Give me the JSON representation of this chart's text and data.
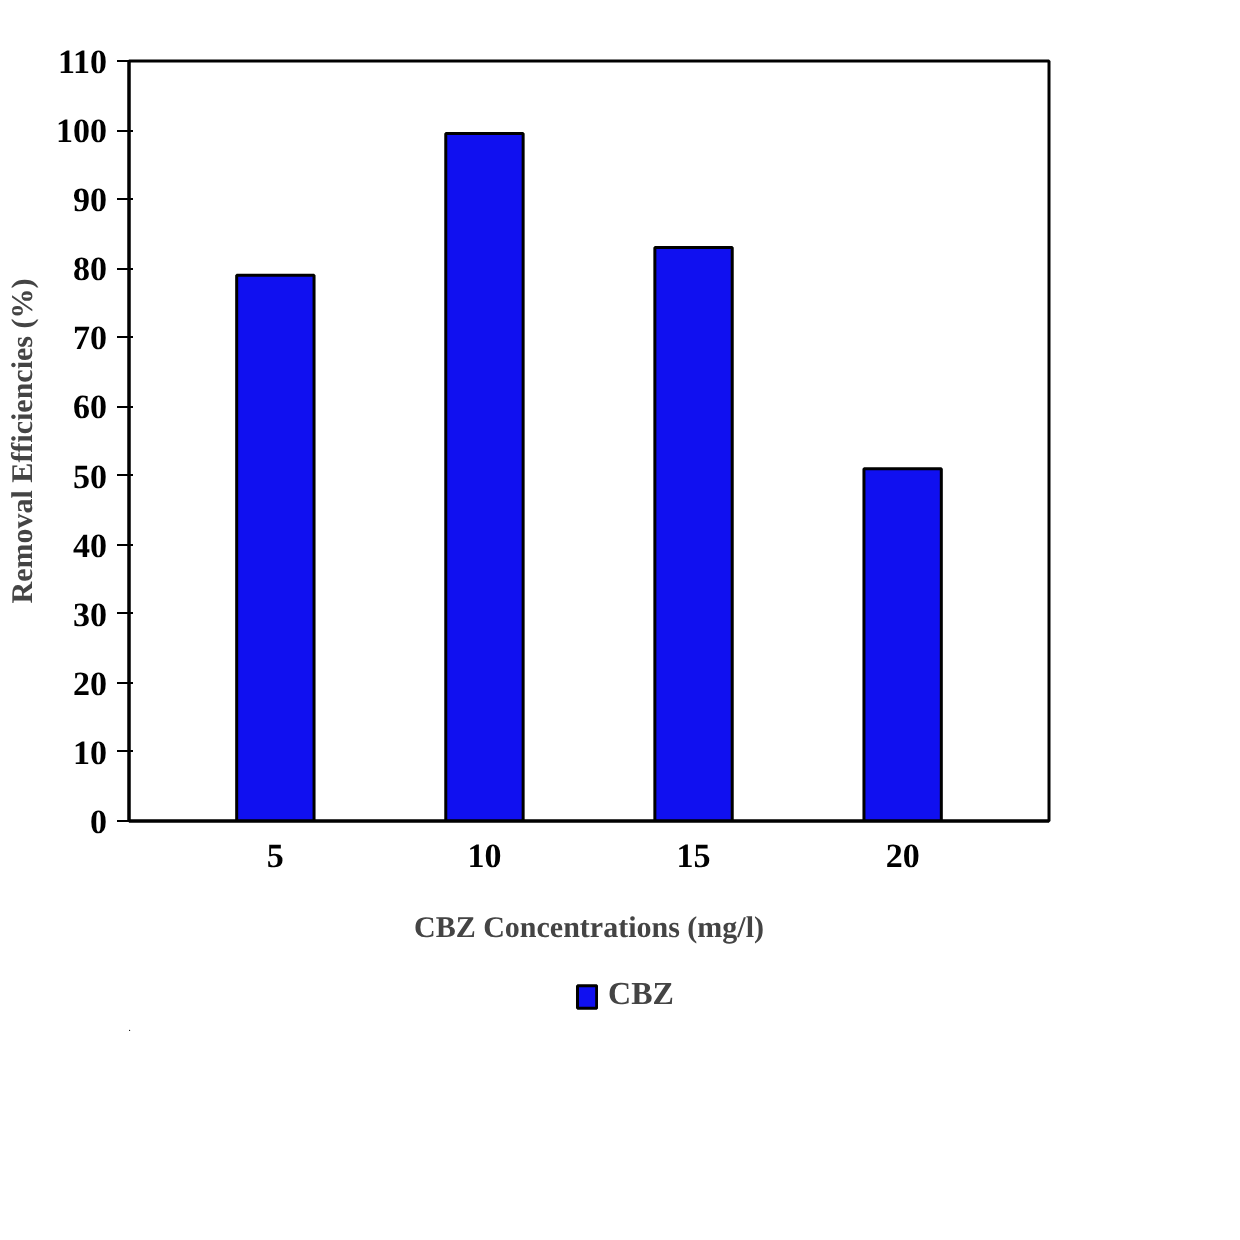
{
  "chart_data": {
    "type": "bar",
    "xlabel": "CBZ Concentrations (mg/l)",
    "ylabel": "Removal Efficiencies (%)",
    "categories": [
      "5",
      "10",
      "15",
      "20"
    ],
    "series": [
      {
        "name": "CBZ",
        "color": "#1010f0",
        "values": [
          79,
          99.5,
          83,
          51
        ]
      }
    ],
    "ylim": [
      0,
      110
    ],
    "yticks": [
      0,
      10,
      20,
      30,
      40,
      50,
      60,
      70,
      80,
      90,
      100,
      110
    ],
    "grid": false,
    "legend": "bottom"
  }
}
